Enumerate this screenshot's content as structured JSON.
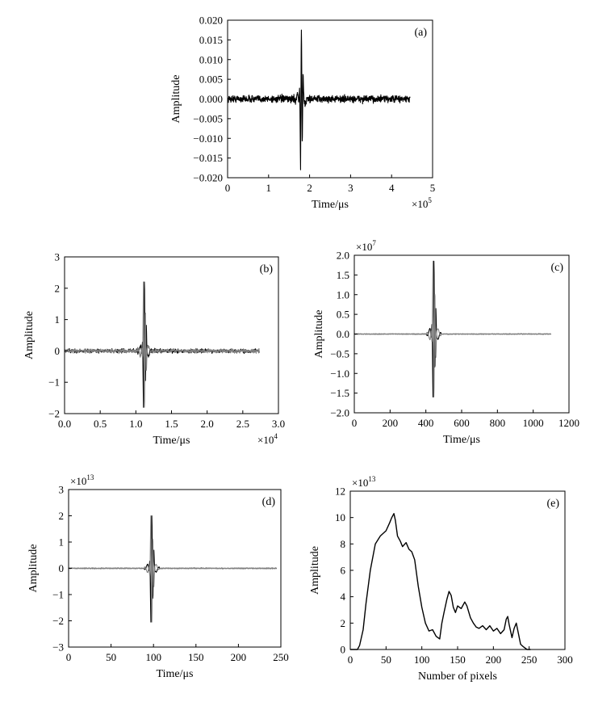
{
  "chart_data": [
    {
      "id": "a",
      "type": "line",
      "panel_label": "(a)",
      "xlabel": "Time/μs",
      "ylabel": "Amplitude",
      "x_multiplier": {
        "base": "×10",
        "exp": "5"
      },
      "y_multiplier": null,
      "xlim": [
        0,
        5
      ],
      "ylim": [
        -0.02,
        0.02
      ],
      "x_ticks": [
        "0",
        "1",
        "2",
        "3",
        "4",
        "5"
      ],
      "y_ticks": [
        "-0.020",
        "-0.015",
        "-0.010",
        "-0.005",
        "0.000",
        "0.005",
        "0.010",
        "0.015",
        "0.020"
      ],
      "signal": {
        "x_end": 4.45,
        "spike_x": 1.8,
        "peak": 0.0175,
        "trough": -0.018,
        "noise": 0.0015
      },
      "series": [
        {
          "color": "#000000"
        }
      ]
    },
    {
      "id": "b",
      "type": "line",
      "panel_label": "(b)",
      "xlabel": "Time/μs",
      "ylabel": "Amplitude",
      "x_multiplier": {
        "base": "×10",
        "exp": "4"
      },
      "y_multiplier": null,
      "xlim": [
        0,
        3.0
      ],
      "ylim": [
        -2,
        3
      ],
      "x_ticks": [
        "0.0",
        "0.5",
        "1.0",
        "1.5",
        "2.0",
        "2.5",
        "3.0"
      ],
      "y_ticks": [
        "-2",
        "-1",
        "0",
        "1",
        "2",
        "3"
      ],
      "signal": {
        "x_end": 2.73,
        "spike_x": 1.12,
        "peak": 2.2,
        "trough": -1.8,
        "noise": 0.1
      },
      "series": [
        {
          "color": "#000000"
        },
        {
          "color": "#808080"
        }
      ]
    },
    {
      "id": "c",
      "type": "line",
      "panel_label": "(c)",
      "xlabel": "Time/μs",
      "ylabel": "Amplitude",
      "x_multiplier": null,
      "y_multiplier": {
        "base": "×10",
        "exp": "7"
      },
      "xlim": [
        0,
        1200
      ],
      "ylim": [
        -2.0,
        2.0
      ],
      "x_ticks": [
        "0",
        "200",
        "400",
        "600",
        "800",
        "1000",
        "1200"
      ],
      "y_ticks": [
        "-2.0",
        "-1.5",
        "-1.0",
        "-0.5",
        "0.0",
        "0.5",
        "1.0",
        "1.5",
        "2.0"
      ],
      "signal": {
        "x_end": 1100,
        "spike_x": 445,
        "peak": 1.85,
        "trough": -1.6,
        "noise": 0.01
      },
      "series": [
        {
          "color": "#000000"
        },
        {
          "color": "#808080"
        }
      ]
    },
    {
      "id": "d",
      "type": "line",
      "panel_label": "(d)",
      "xlabel": "Time/μs",
      "ylabel": "Amplitude",
      "x_multiplier": null,
      "y_multiplier": {
        "base": "×10",
        "exp": "13"
      },
      "xlim": [
        0,
        250
      ],
      "ylim": [
        -3,
        3
      ],
      "x_ticks": [
        "0",
        "50",
        "100",
        "150",
        "200",
        "250"
      ],
      "y_ticks": [
        "-3",
        "-2",
        "-1",
        "0",
        "1",
        "2",
        "3"
      ],
      "signal": {
        "x_end": 245,
        "spike_x": 98,
        "peak": 2.0,
        "trough": -2.05,
        "noise": 0.02
      },
      "series": [
        {
          "color": "#000000"
        },
        {
          "color": "#808080"
        }
      ]
    },
    {
      "id": "e",
      "type": "line",
      "panel_label": "(e)",
      "xlabel": "Number of pixels",
      "ylabel": "Amplitude",
      "x_multiplier": null,
      "y_multiplier": {
        "base": "×10",
        "exp": "13"
      },
      "xlim": [
        0,
        300
      ],
      "ylim": [
        0,
        12
      ],
      "x_ticks": [
        "0",
        "50",
        "100",
        "150",
        "200",
        "250",
        "300"
      ],
      "y_ticks": [
        "0",
        "2",
        "4",
        "6",
        "8",
        "10",
        "12"
      ],
      "series": [
        {
          "color": "#000000",
          "x": [
            0,
            10,
            13,
            18,
            22,
            28,
            35,
            42,
            50,
            55,
            58,
            61,
            63,
            66,
            70,
            73,
            78,
            82,
            86,
            90,
            95,
            100,
            105,
            110,
            115,
            120,
            125,
            128,
            131,
            135,
            138,
            141,
            144,
            147,
            150,
            155,
            160,
            163,
            168,
            172,
            176,
            180,
            185,
            190,
            195,
            200,
            205,
            210,
            215,
            218,
            220,
            222,
            226,
            229,
            232,
            235,
            238,
            242,
            247,
            252
          ],
          "y": [
            0,
            0,
            0.3,
            1.5,
            3.5,
            6.0,
            8.0,
            8.6,
            9.0,
            9.6,
            10.0,
            10.3,
            9.8,
            8.6,
            8.2,
            7.8,
            8.1,
            7.6,
            7.4,
            6.8,
            4.8,
            3.2,
            2.0,
            1.4,
            1.5,
            1.0,
            0.8,
            2.0,
            2.8,
            3.8,
            4.4,
            4.1,
            3.2,
            2.8,
            3.3,
            3.1,
            3.6,
            3.3,
            2.4,
            2.0,
            1.7,
            1.6,
            1.8,
            1.5,
            1.8,
            1.4,
            1.6,
            1.2,
            1.5,
            2.3,
            2.5,
            1.9,
            0.9,
            1.6,
            2.0,
            1.2,
            0.4,
            0.2,
            0,
            0
          ]
        }
      ]
    }
  ]
}
